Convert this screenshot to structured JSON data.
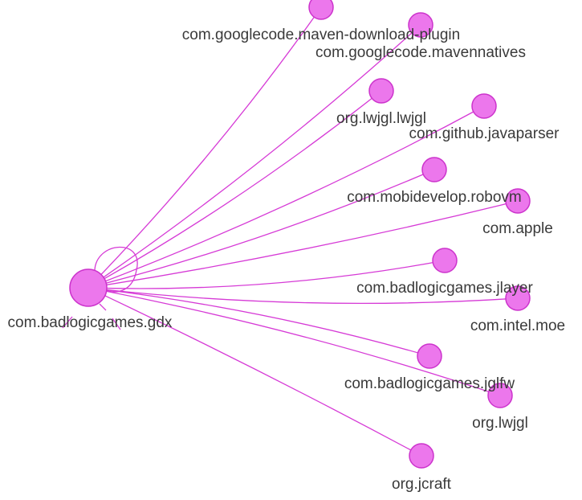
{
  "graph": {
    "colors": {
      "edge": "#d63ad6",
      "node_fill": "#ec77ec",
      "node_stroke": "#cc33cc",
      "label": "#3a3a3a"
    },
    "hub": {
      "id": "hub",
      "label": "com.badlogicgames.gdx"
    },
    "nodes": [
      {
        "id": "maven-download-plugin",
        "label": "com.googlecode.maven-download-plugin"
      },
      {
        "id": "mavennatives",
        "label": "com.googlecode.mavennatives"
      },
      {
        "id": "lwjgl-lwjgl",
        "label": "org.lwjgl.lwjgl"
      },
      {
        "id": "javaparser",
        "label": "com.github.javaparser"
      },
      {
        "id": "robovm",
        "label": "com.mobidevelop.robovm"
      },
      {
        "id": "apple",
        "label": "com.apple"
      },
      {
        "id": "jlayer",
        "label": "com.badlogicgames.jlayer"
      },
      {
        "id": "intel-moe",
        "label": "com.intel.moe"
      },
      {
        "id": "jglfw",
        "label": "com.badlogicgames.jglfw"
      },
      {
        "id": "org-lwjgl",
        "label": "org.lwjgl"
      },
      {
        "id": "jcraft",
        "label": "org.jcraft"
      }
    ],
    "edges": [
      {
        "from": "hub",
        "to": "maven-download-plugin"
      },
      {
        "from": "hub",
        "to": "mavennatives"
      },
      {
        "from": "hub",
        "to": "lwjgl-lwjgl"
      },
      {
        "from": "hub",
        "to": "javaparser"
      },
      {
        "from": "hub",
        "to": "robovm"
      },
      {
        "from": "hub",
        "to": "apple"
      },
      {
        "from": "hub",
        "to": "jlayer"
      },
      {
        "from": "hub",
        "to": "intel-moe"
      },
      {
        "from": "hub",
        "to": "jglfw"
      },
      {
        "from": "hub",
        "to": "org-lwjgl"
      },
      {
        "from": "hub",
        "to": "jcraft"
      },
      {
        "from": "hub",
        "to": "hub",
        "self_loop": true
      }
    ]
  }
}
